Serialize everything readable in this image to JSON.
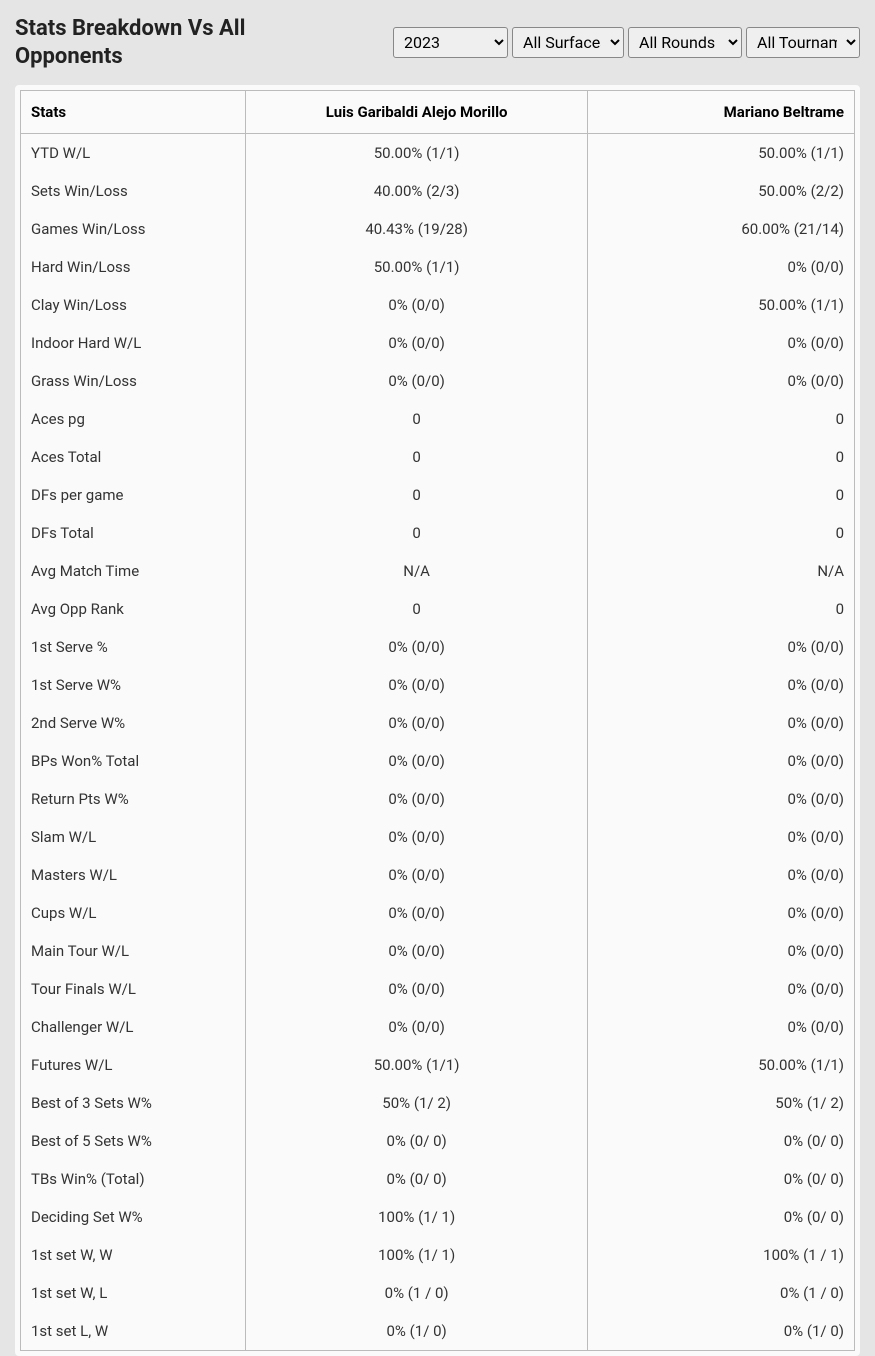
{
  "header": {
    "title": "Stats Breakdown Vs All Opponents"
  },
  "filters": {
    "year": {
      "selected": "2023",
      "options": [
        "2023"
      ]
    },
    "surface": {
      "selected": "All Surfaces",
      "options": [
        "All Surfaces"
      ]
    },
    "rounds": {
      "selected": "All Rounds",
      "options": [
        "All Rounds"
      ]
    },
    "tournament": {
      "selected": "All Tournaments",
      "options": [
        "All Tournaments"
      ]
    }
  },
  "table": {
    "columns": [
      "Stats",
      "Luis Garibaldi Alejo Morillo",
      "Mariano Beltrame"
    ],
    "rows": [
      {
        "stat": "YTD W/L",
        "p1": "50.00% (1/1)",
        "p2": "50.00% (1/1)"
      },
      {
        "stat": "Sets Win/Loss",
        "p1": "40.00% (2/3)",
        "p2": "50.00% (2/2)"
      },
      {
        "stat": "Games Win/Loss",
        "p1": "40.43% (19/28)",
        "p2": "60.00% (21/14)"
      },
      {
        "stat": "Hard Win/Loss",
        "p1": "50.00% (1/1)",
        "p2": "0% (0/0)"
      },
      {
        "stat": "Clay Win/Loss",
        "p1": "0% (0/0)",
        "p2": "50.00% (1/1)"
      },
      {
        "stat": "Indoor Hard W/L",
        "p1": "0% (0/0)",
        "p2": "0% (0/0)"
      },
      {
        "stat": "Grass Win/Loss",
        "p1": "0% (0/0)",
        "p2": "0% (0/0)"
      },
      {
        "stat": "Aces pg",
        "p1": "0",
        "p2": "0"
      },
      {
        "stat": "Aces Total",
        "p1": "0",
        "p2": "0"
      },
      {
        "stat": "DFs per game",
        "p1": "0",
        "p2": "0"
      },
      {
        "stat": "DFs Total",
        "p1": "0",
        "p2": "0"
      },
      {
        "stat": "Avg Match Time",
        "p1": "N/A",
        "p2": "N/A"
      },
      {
        "stat": "Avg Opp Rank",
        "p1": "0",
        "p2": "0"
      },
      {
        "stat": "1st Serve %",
        "p1": "0% (0/0)",
        "p2": "0% (0/0)"
      },
      {
        "stat": "1st Serve W%",
        "p1": "0% (0/0)",
        "p2": "0% (0/0)"
      },
      {
        "stat": "2nd Serve W%",
        "p1": "0% (0/0)",
        "p2": "0% (0/0)"
      },
      {
        "stat": "BPs Won% Total",
        "p1": "0% (0/0)",
        "p2": "0% (0/0)"
      },
      {
        "stat": "Return Pts W%",
        "p1": "0% (0/0)",
        "p2": "0% (0/0)"
      },
      {
        "stat": "Slam W/L",
        "p1": "0% (0/0)",
        "p2": "0% (0/0)"
      },
      {
        "stat": "Masters W/L",
        "p1": "0% (0/0)",
        "p2": "0% (0/0)"
      },
      {
        "stat": "Cups W/L",
        "p1": "0% (0/0)",
        "p2": "0% (0/0)"
      },
      {
        "stat": "Main Tour W/L",
        "p1": "0% (0/0)",
        "p2": "0% (0/0)"
      },
      {
        "stat": "Tour Finals W/L",
        "p1": "0% (0/0)",
        "p2": "0% (0/0)"
      },
      {
        "stat": "Challenger W/L",
        "p1": "0% (0/0)",
        "p2": "0% (0/0)"
      },
      {
        "stat": "Futures W/L",
        "p1": "50.00% (1/1)",
        "p2": "50.00% (1/1)"
      },
      {
        "stat": "Best of 3 Sets W%",
        "p1": "50% (1/ 2)",
        "p2": "50% (1/ 2)"
      },
      {
        "stat": "Best of 5 Sets W%",
        "p1": "0% (0/ 0)",
        "p2": "0% (0/ 0)"
      },
      {
        "stat": "TBs Win% (Total)",
        "p1": "0% (0/ 0)",
        "p2": "0% (0/ 0)"
      },
      {
        "stat": "Deciding Set W%",
        "p1": "100% (1/ 1)",
        "p2": "0% (0/ 0)"
      },
      {
        "stat": "1st set W, W",
        "p1": "100% (1/ 1)",
        "p2": "100% (1 / 1)"
      },
      {
        "stat": "1st set W, L",
        "p1": "0% (1 / 0)",
        "p2": "0% (1 / 0)"
      },
      {
        "stat": "1st set L, W",
        "p1": "0% (1/ 0)",
        "p2": "0% (1/ 0)"
      }
    ]
  },
  "style": {
    "background_color": "#e5e5e5",
    "table_background": "#fafafa",
    "border_color": "#bbbbbb",
    "title_color": "#222222",
    "text_color": "#333333",
    "title_fontsize": 22,
    "header_fontsize": 15,
    "cell_fontsize": 15
  }
}
